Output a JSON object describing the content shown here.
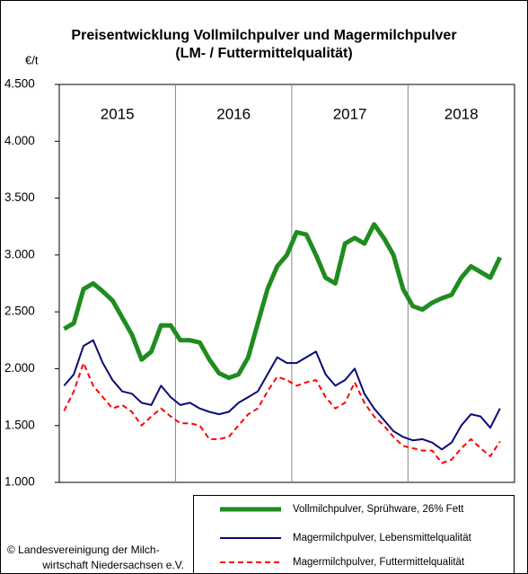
{
  "chart_data": {
    "type": "line",
    "title": "Preisentwicklung Vollmilchpulver und Magermilchpulver",
    "subtitle": "(LM- / Futtermittelqualität)",
    "y_label": "€/t",
    "source": [
      "© Landesvereinigung der Milch-",
      "wirtschaft Niedersachsen e.V."
    ],
    "year_labels": [
      "2015",
      "2016",
      "2017",
      "2018"
    ],
    "categories": [
      null,
      null,
      null,
      null,
      null,
      null,
      null,
      null,
      null,
      null,
      null,
      null,
      null,
      null,
      null,
      null,
      null,
      null,
      null,
      null,
      null,
      null,
      null,
      null,
      null,
      null,
      null,
      null,
      null,
      null,
      null,
      null,
      null,
      null,
      null,
      null,
      null,
      null,
      null,
      null,
      null,
      null,
      null,
      null,
      null,
      null
    ],
    "series": [
      {
        "name": "Vollmilchpulver, Sprühware, 26% Fett",
        "color": "#1f8c1f",
        "dash": false,
        "width": 5,
        "values": [
          2350,
          2400,
          2700,
          2750,
          2680,
          2600,
          2450,
          2300,
          2080,
          2150,
          2380,
          2380,
          2250,
          2250,
          2230,
          2080,
          1960,
          1920,
          1950,
          2100,
          2400,
          2700,
          2900,
          3000,
          3200,
          3180,
          3000,
          2800,
          2750,
          3100,
          3150,
          3100,
          3270,
          3150,
          3000,
          2700,
          2550,
          2520,
          2580,
          2620,
          2650,
          2800,
          2900,
          2850,
          2800,
          2980
        ]
      },
      {
        "name": "Magermilchpulver, Lebensmittelqualität",
        "color": "#0a0a78",
        "dash": false,
        "width": 2,
        "values": [
          1850,
          1950,
          2200,
          2250,
          2050,
          1900,
          1800,
          1780,
          1700,
          1680,
          1850,
          1750,
          1680,
          1700,
          1650,
          1620,
          1600,
          1620,
          1700,
          1750,
          1800,
          1950,
          2100,
          2050,
          2050,
          2100,
          2150,
          1950,
          1850,
          1900,
          2000,
          1780,
          1650,
          1550,
          1450,
          1400,
          1370,
          1380,
          1350,
          1290,
          1350,
          1500,
          1600,
          1580,
          1480,
          1650
        ]
      },
      {
        "name": "Magermilchpulver, Futtermittelqualität",
        "color": "#ff0000",
        "dash": true,
        "width": 2,
        "values": [
          1630,
          1800,
          2050,
          1850,
          1750,
          1650,
          1680,
          1620,
          1500,
          1580,
          1650,
          1580,
          1520,
          1520,
          1500,
          1380,
          1380,
          1400,
          1500,
          1600,
          1650,
          1800,
          1930,
          1900,
          1850,
          1880,
          1900,
          1750,
          1650,
          1700,
          1880,
          1700,
          1580,
          1500,
          1400,
          1320,
          1300,
          1280,
          1280,
          1170,
          1200,
          1300,
          1380,
          1300,
          1230,
          1360
        ]
      }
    ],
    "ylim": [
      1000,
      4500
    ],
    "yticks": [
      {
        "value": 1000,
        "label": "1.000"
      },
      {
        "value": 1500,
        "label": "1.500"
      },
      {
        "value": 2000,
        "label": "2.000"
      },
      {
        "value": 2500,
        "label": "2.500"
      },
      {
        "value": 3000,
        "label": "3.000"
      },
      {
        "value": 3500,
        "label": "3.500"
      },
      {
        "value": 4000,
        "label": "4.000"
      },
      {
        "value": 4500,
        "label": "4.500"
      }
    ],
    "grid": false
  }
}
